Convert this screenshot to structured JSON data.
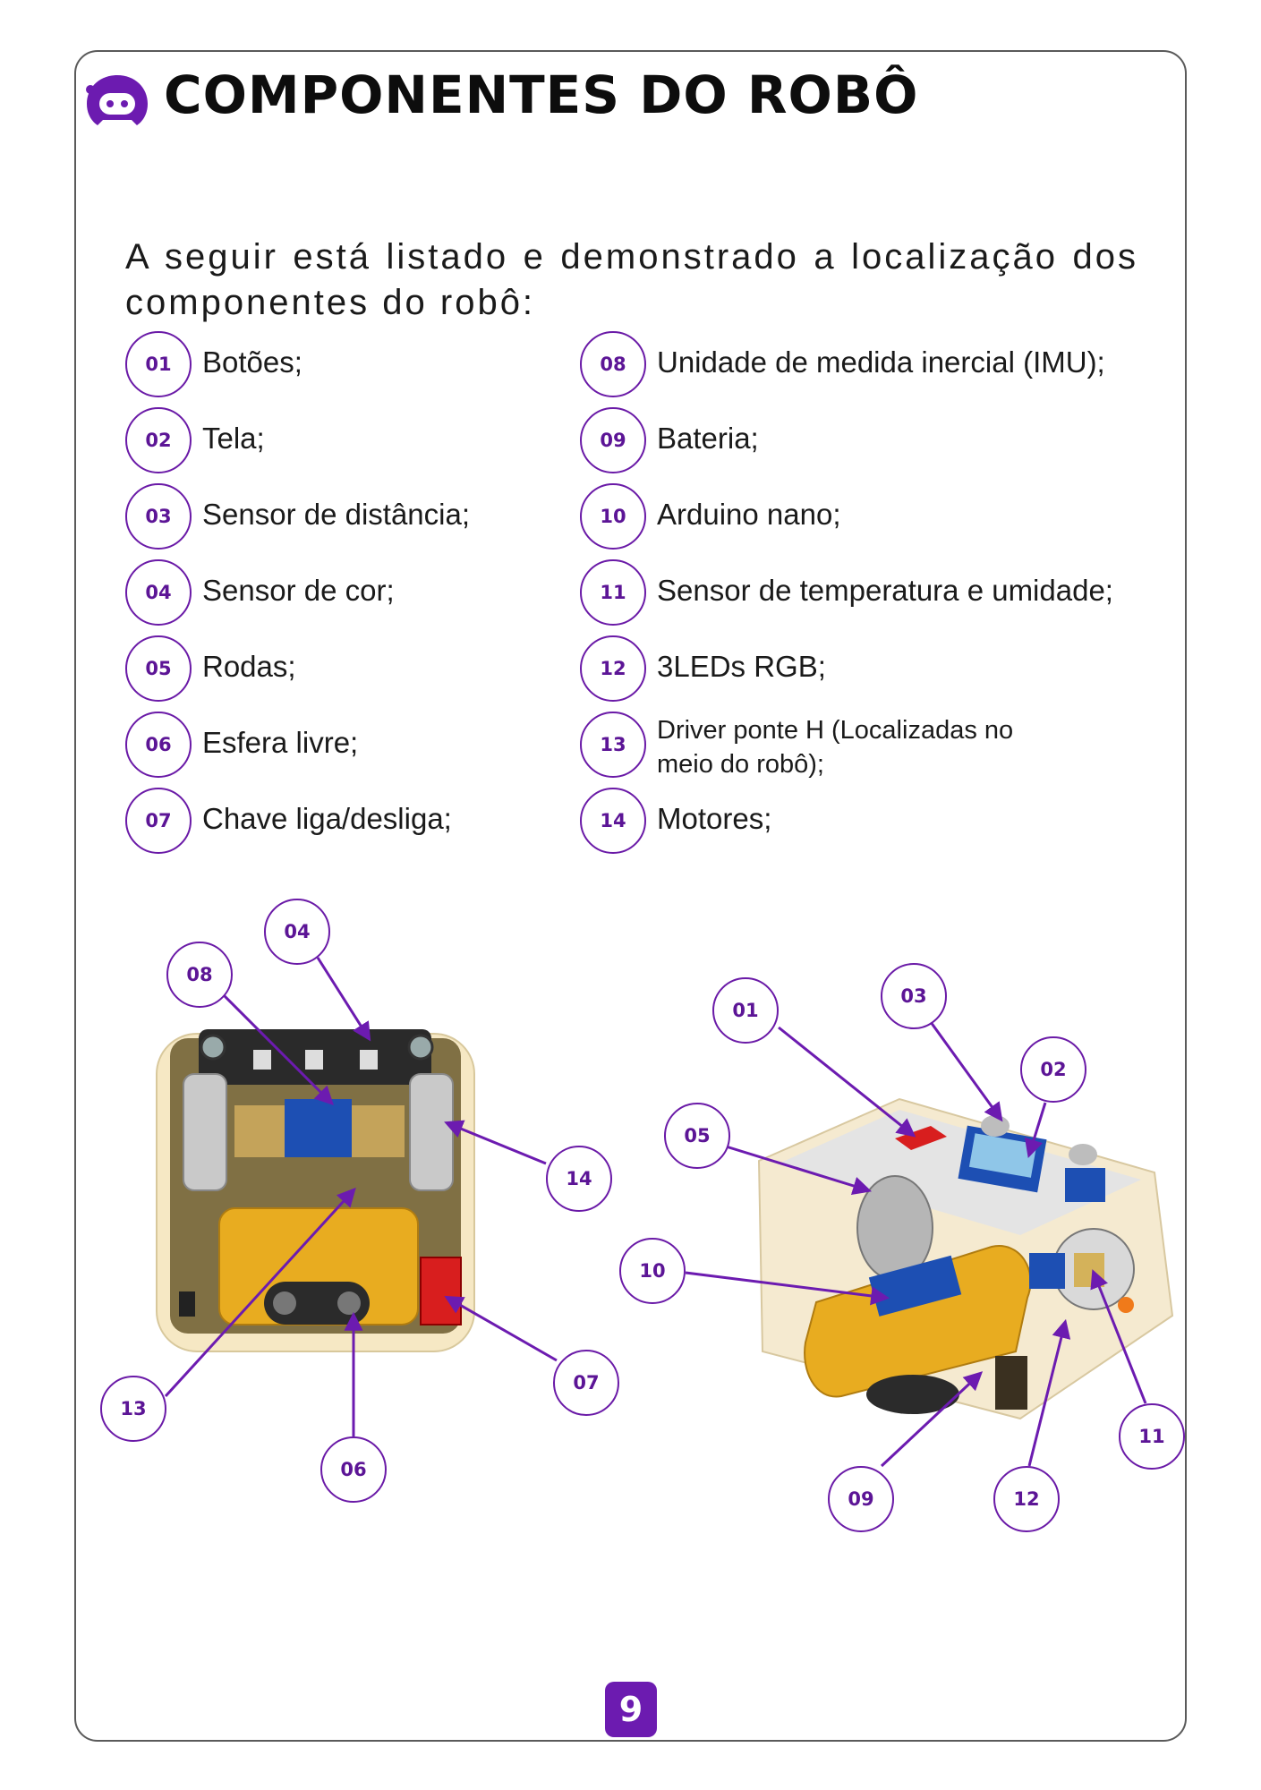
{
  "header": {
    "title": "COMPONENTES DO ROBÔ",
    "logo_icon": "robot-head-icon"
  },
  "intro": "A seguir está listado e demonstrado a localização dos componentes do robô:",
  "components_left": [
    {
      "num": "01",
      "label": "Botões;"
    },
    {
      "num": "02",
      "label": "Tela;"
    },
    {
      "num": "03",
      "label": "Sensor de distância;"
    },
    {
      "num": "04",
      "label": "Sensor de cor;"
    },
    {
      "num": "05",
      "label": "Rodas;"
    },
    {
      "num": "06",
      "label": "Esfera livre;"
    },
    {
      "num": "07",
      "label": "Chave liga/desliga;"
    }
  ],
  "components_right": [
    {
      "num": "08",
      "label": "Unidade de medida inercial (IMU);"
    },
    {
      "num": "09",
      "label": "Bateria;"
    },
    {
      "num": "10",
      "label": "Arduino nano;"
    },
    {
      "num": "11",
      "label": "Sensor de temperatura e umidade;"
    },
    {
      "num": "12",
      "label": "3LEDs RGB;"
    },
    {
      "num": "13",
      "label": "Driver ponte H (Localizadas no meio do robô);"
    },
    {
      "num": "14",
      "label": "Motores;"
    }
  ],
  "bottom_view_callouts": [
    "04",
    "08",
    "14",
    "13",
    "06",
    "07"
  ],
  "top_view_callouts": [
    "01",
    "03",
    "02",
    "05",
    "10",
    "11",
    "09",
    "12"
  ],
  "page_number": "9",
  "colors": {
    "accent": "#6c1bb0",
    "badge_text": "#5c1596",
    "frame": "#5a5a5a"
  }
}
